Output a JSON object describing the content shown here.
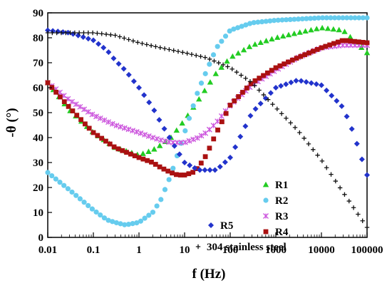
{
  "chart_data": {
    "type": "scatter",
    "title": "",
    "xlabel": "f (Hz)",
    "ylabel": "-θ (°)",
    "x_scale": "log",
    "xlim": [
      0.01,
      100000
    ],
    "ylim": [
      0,
      90
    ],
    "x_ticks": [
      0.01,
      0.1,
      1,
      10,
      100,
      1000,
      10000,
      100000
    ],
    "x_tick_labels": [
      "0.01",
      "0.1",
      "1",
      "10",
      "100",
      "1000",
      "10000",
      "100000"
    ],
    "y_ticks": [
      0,
      10,
      20,
      30,
      40,
      50,
      60,
      70,
      80,
      90
    ],
    "y_tick_labels": [
      "0",
      "10",
      "20",
      "30",
      "40",
      "50",
      "60",
      "70",
      "80",
      "90"
    ],
    "grid": false,
    "legend_position": "inside-right",
    "series": [
      {
        "name": "R1",
        "marker": "triangle",
        "color": "#22cc22",
        "x": [
          0.01,
          0.03,
          0.1,
          0.3,
          1,
          2,
          3,
          5,
          10,
          20,
          50,
          100,
          300,
          1000,
          3000,
          10000,
          30000,
          100000
        ],
        "y": [
          62,
          51,
          42,
          36,
          33,
          35,
          37,
          40,
          47,
          55,
          66,
          72,
          77,
          80,
          82,
          84,
          83,
          74
        ]
      },
      {
        "name": "R2",
        "marker": "circle",
        "color": "#66ccee",
        "x": [
          0.01,
          0.03,
          0.1,
          0.2,
          0.3,
          0.5,
          1,
          2,
          3,
          5,
          10,
          20,
          50,
          100,
          300,
          1000,
          10000,
          100000
        ],
        "y": [
          26,
          19,
          11,
          7,
          6,
          5,
          6,
          10,
          15,
          25,
          42,
          59,
          76,
          83,
          86,
          87,
          88,
          88
        ]
      },
      {
        "name": "R3",
        "marker": "asterisk",
        "color": "#cc55dd",
        "x": [
          0.01,
          0.03,
          0.1,
          0.3,
          1,
          2,
          3,
          5,
          10,
          20,
          30,
          50,
          100,
          300,
          1000,
          3000,
          10000,
          30000,
          100000
        ],
        "y": [
          62,
          55,
          49,
          45,
          42,
          40,
          39,
          38,
          38,
          40,
          42,
          46,
          53,
          61,
          67,
          72,
          76,
          77,
          77
        ]
      },
      {
        "name": "R4",
        "marker": "square",
        "color": "#aa1111",
        "x": [
          0.01,
          0.03,
          0.1,
          0.3,
          1,
          2,
          3,
          5,
          7,
          10,
          15,
          20,
          30,
          50,
          100,
          300,
          1000,
          3000,
          10000,
          30000,
          100000
        ],
        "y": [
          62,
          52,
          42,
          36,
          32,
          30,
          28,
          26,
          25,
          25,
          26,
          28,
          33,
          42,
          53,
          62,
          68,
          72,
          76,
          79,
          78
        ]
      },
      {
        "name": "R5",
        "marker": "diamond",
        "color": "#2233cc",
        "x": [
          0.01,
          0.03,
          0.1,
          0.2,
          0.3,
          0.5,
          1,
          2,
          3,
          5,
          10,
          20,
          30,
          50,
          100,
          300,
          1000,
          3000,
          10000,
          30000,
          50000,
          100000
        ],
        "y": [
          83,
          82,
          79,
          75,
          71,
          67,
          60,
          52,
          46,
          39,
          30,
          27,
          27,
          27,
          32,
          50,
          60,
          63,
          61,
          52,
          42,
          25
        ]
      },
      {
        "name": "304 stainless steel",
        "marker": "plus",
        "color": "#111111",
        "x": [
          0.01,
          0.03,
          0.1,
          0.3,
          1,
          3,
          10,
          30,
          100,
          300,
          1000,
          3000,
          10000,
          30000,
          100000
        ],
        "y": [
          82,
          82,
          82,
          81,
          78,
          76,
          74,
          72,
          68,
          62,
          52,
          43,
          31,
          18,
          4
        ]
      }
    ]
  },
  "legend": [
    {
      "label": "R1",
      "marker": "triangle",
      "color": "#22cc22"
    },
    {
      "label": "R2",
      "marker": "circle",
      "color": "#66ccee"
    },
    {
      "label": "R3",
      "marker": "asterisk",
      "color": "#cc55dd"
    },
    {
      "label": "R4",
      "marker": "square",
      "color": "#aa1111"
    },
    {
      "label": "R5",
      "marker": "diamond",
      "color": "#2233cc"
    },
    {
      "label": "304 stainless steel",
      "marker": "plus",
      "color": "#111111"
    }
  ]
}
